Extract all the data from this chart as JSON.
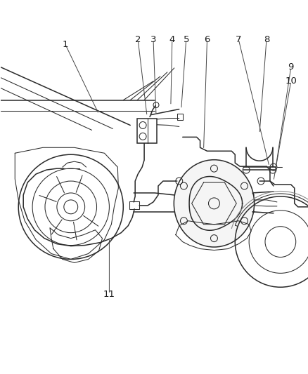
{
  "bg_color": "#ffffff",
  "line_color": "#2a2a2a",
  "label_color": "#1a1a1a",
  "fig_width": 4.39,
  "fig_height": 5.33,
  "dpi": 100
}
